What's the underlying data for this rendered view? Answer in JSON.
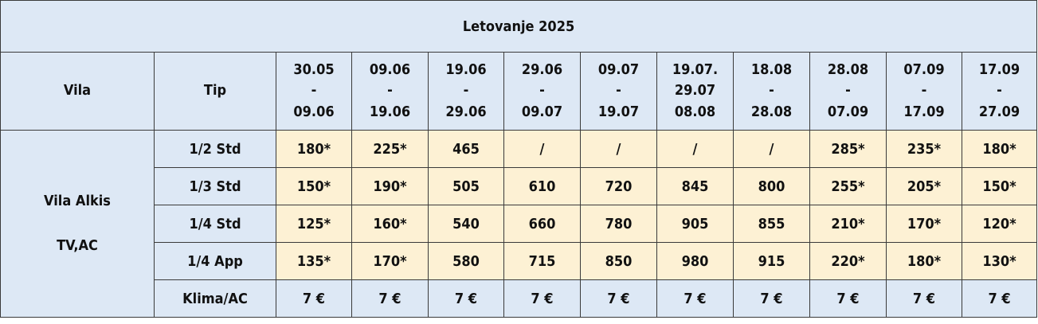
{
  "title": "Letovanje 2025",
  "headers": {
    "villa": "Vila",
    "type": "Tip"
  },
  "periods": [
    {
      "from": "30.05",
      "sep": "-",
      "to": "09.06"
    },
    {
      "from": "09.06",
      "sep": "-",
      "to": "19.06"
    },
    {
      "from": "19.06",
      "sep": "-",
      "to": "29.06"
    },
    {
      "from": "29.06",
      "sep": "-",
      "to": "09.07"
    },
    {
      "from": "09.07",
      "sep": "-",
      "to": "19.07"
    },
    {
      "from": "19.07.",
      "sep": "29.07",
      "to": "08.08"
    },
    {
      "from": "18.08",
      "sep": "-",
      "to": "28.08"
    },
    {
      "from": "28.08",
      "sep": "-",
      "to": "07.09"
    },
    {
      "from": "07.09",
      "sep": "-",
      "to": "17.09"
    },
    {
      "from": "17.09",
      "sep": "-",
      "to": "27.09"
    }
  ],
  "villa": {
    "name": "Vila Alkis",
    "features": "TV,AC"
  },
  "rows": [
    {
      "type": "1/2 Std",
      "prices": [
        "180*",
        "225*",
        "465",
        "/",
        "/",
        "/",
        "/",
        "285*",
        "235*",
        "180*"
      ]
    },
    {
      "type": "1/3 Std",
      "prices": [
        "150*",
        "190*",
        "505",
        "610",
        "720",
        "845",
        "800",
        "255*",
        "205*",
        "150*"
      ]
    },
    {
      "type": "1/4 Std",
      "prices": [
        "125*",
        "160*",
        "540",
        "660",
        "780",
        "905",
        "855",
        "210*",
        "170*",
        "120*"
      ]
    },
    {
      "type": "1/4 App",
      "prices": [
        "135*",
        "170*",
        "580",
        "715",
        "850",
        "980",
        "915",
        "220*",
        "180*",
        "130*"
      ]
    }
  ],
  "ac_row": {
    "type": "Klima/AC",
    "prices": [
      "7 €",
      "7 €",
      "7 €",
      "7 €",
      "7 €",
      "7 €",
      "7 €",
      "7 €",
      "7 €",
      "7 €"
    ]
  },
  "colors": {
    "header_bg": "#dde8f5",
    "price_bg": "#fdf1d4",
    "border": "#3a3a3a"
  }
}
